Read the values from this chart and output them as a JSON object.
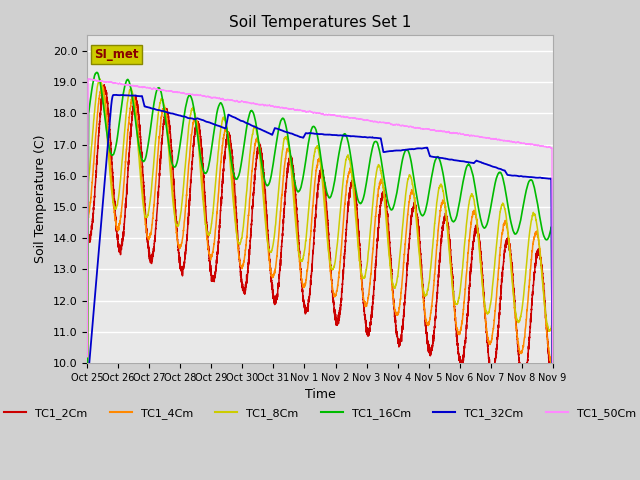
{
  "title": "Soil Temperatures Set 1",
  "ylabel": "Soil Temperature (C)",
  "xlabel": "Time",
  "ylim": [
    10.0,
    20.5
  ],
  "yticks": [
    10.0,
    11.0,
    12.0,
    13.0,
    14.0,
    15.0,
    16.0,
    17.0,
    18.0,
    19.0,
    20.0
  ],
  "xtick_labels": [
    "Oct 25",
    "Oct 26",
    "Oct 27",
    "Oct 28",
    "Oct 29",
    "Oct 30",
    "Oct 31",
    "Nov 1",
    "Nov 2",
    "Nov 3",
    "Nov 4",
    "Nov 5",
    "Nov 6",
    "Nov 7",
    "Nov 8",
    "Nov 9"
  ],
  "colors": {
    "TC1_2Cm": "#cc0000",
    "TC1_4Cm": "#ff8800",
    "TC1_8Cm": "#cccc00",
    "TC1_16Cm": "#00bb00",
    "TC1_32Cm": "#0000cc",
    "TC1_50Cm": "#ff88ff"
  },
  "fig_facecolor": "#d0d0d0",
  "ax_facecolor": "#e8e8e8",
  "grid_color": "#ffffff",
  "duration_days": 15,
  "n_points": 5400
}
